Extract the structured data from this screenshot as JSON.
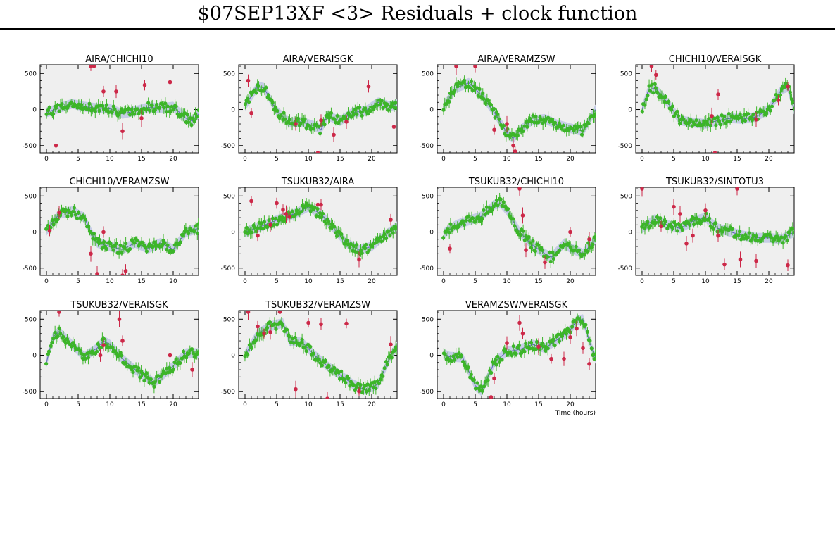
{
  "title": "$07SEP13XF <3> Residuals + clock function",
  "xlabel": "Time (hours)",
  "colors": {
    "background": "#ffffff",
    "plot_bg": "#efefef",
    "good_points": "#3cb529",
    "flagged_points": "#cc2848",
    "clock_band": "#c6cde6",
    "clock_line": "#5a66b2"
  },
  "chart_data": [
    {
      "type": "scatter",
      "title": "AIRA/CHICHI10",
      "xlim": [
        -1,
        24
      ],
      "ylim": [
        -600,
        620
      ],
      "xticks": [
        0,
        5,
        10,
        15,
        20
      ],
      "yticks": [
        -500,
        0,
        500
      ],
      "curve": [
        [
          0,
          -40
        ],
        [
          2,
          20
        ],
        [
          4,
          80
        ],
        [
          6,
          40
        ],
        [
          8,
          20
        ],
        [
          10,
          10
        ],
        [
          12,
          -60
        ],
        [
          14,
          -20
        ],
        [
          16,
          30
        ],
        [
          18,
          20
        ],
        [
          20,
          40
        ],
        [
          22,
          -120
        ],
        [
          23,
          -160
        ],
        [
          24,
          -60
        ]
      ],
      "flagged": [
        [
          1.5,
          -500
        ],
        [
          7,
          600
        ],
        [
          7.5,
          600
        ],
        [
          9,
          250
        ],
        [
          11,
          250
        ],
        [
          12,
          -300
        ],
        [
          15.5,
          340
        ],
        [
          19.5,
          380
        ],
        [
          15,
          -120
        ]
      ]
    },
    {
      "type": "scatter",
      "title": "AIRA/VERAISGK",
      "xlim": [
        -1,
        24
      ],
      "ylim": [
        -600,
        620
      ],
      "xticks": [
        0,
        5,
        10,
        15,
        20
      ],
      "yticks": [
        -500,
        0,
        500
      ],
      "curve": [
        [
          0,
          50
        ],
        [
          2,
          320
        ],
        [
          3,
          300
        ],
        [
          5,
          -20
        ],
        [
          7,
          -180
        ],
        [
          9,
          -170
        ],
        [
          11,
          -230
        ],
        [
          12,
          -280
        ],
        [
          13,
          -80
        ],
        [
          15,
          -160
        ],
        [
          17,
          -40
        ],
        [
          19,
          -20
        ],
        [
          21,
          100
        ],
        [
          23,
          40
        ],
        [
          24,
          80
        ]
      ],
      "flagged": [
        [
          0.5,
          400
        ],
        [
          1,
          -50
        ],
        [
          8,
          -200
        ],
        [
          11.5,
          -600
        ],
        [
          12,
          -150
        ],
        [
          14,
          -350
        ],
        [
          16,
          -170
        ],
        [
          19.5,
          320
        ],
        [
          23.5,
          -240
        ]
      ]
    },
    {
      "type": "scatter",
      "title": "AIRA/VERAMZSW",
      "xlim": [
        -1,
        24
      ],
      "ylim": [
        -600,
        620
      ],
      "xticks": [
        0,
        5,
        10,
        15,
        20
      ],
      "yticks": [
        -500,
        0,
        500
      ],
      "curve": [
        [
          0,
          40
        ],
        [
          2,
          300
        ],
        [
          4,
          370
        ],
        [
          6,
          200
        ],
        [
          8,
          -40
        ],
        [
          10,
          -320
        ],
        [
          11,
          -400
        ],
        [
          12,
          -290
        ],
        [
          14,
          -150
        ],
        [
          16,
          -130
        ],
        [
          18,
          -210
        ],
        [
          20,
          -260
        ],
        [
          22,
          -300
        ],
        [
          23,
          -150
        ],
        [
          24,
          0
        ]
      ],
      "flagged": [
        [
          2,
          600
        ],
        [
          5,
          600
        ],
        [
          10,
          -200
        ],
        [
          11,
          -500
        ],
        [
          11.3,
          -580
        ],
        [
          8,
          -280
        ]
      ]
    },
    {
      "type": "scatter",
      "title": "CHICHI10/VERAISGK",
      "xlim": [
        -1,
        24
      ],
      "ylim": [
        -600,
        620
      ],
      "xticks": [
        0,
        5,
        10,
        15,
        20
      ],
      "yticks": [
        -500,
        0,
        500
      ],
      "curve": [
        [
          0,
          0
        ],
        [
          1,
          270
        ],
        [
          2,
          300
        ],
        [
          4,
          100
        ],
        [
          6,
          -150
        ],
        [
          8,
          -180
        ],
        [
          10,
          -200
        ],
        [
          12,
          -150
        ],
        [
          14,
          -120
        ],
        [
          16,
          -130
        ],
        [
          18,
          -100
        ],
        [
          20,
          0
        ],
        [
          22,
          280
        ],
        [
          23,
          310
        ],
        [
          24,
          0
        ]
      ],
      "flagged": [
        [
          1.5,
          600
        ],
        [
          2.2,
          480
        ],
        [
          11,
          -90
        ],
        [
          11.5,
          -600
        ],
        [
          12,
          210
        ],
        [
          18,
          -140
        ],
        [
          21.5,
          130
        ],
        [
          23,
          320
        ]
      ]
    },
    {
      "type": "scatter",
      "title": "CHICHI10/VERAMZSW",
      "xlim": [
        -1,
        24
      ],
      "ylim": [
        -600,
        620
      ],
      "xticks": [
        0,
        5,
        10,
        15,
        20
      ],
      "yticks": [
        -500,
        0,
        500
      ],
      "curve": [
        [
          0,
          20
        ],
        [
          2,
          250
        ],
        [
          4,
          290
        ],
        [
          6,
          200
        ],
        [
          7,
          0
        ],
        [
          8,
          -150
        ],
        [
          10,
          -200
        ],
        [
          12,
          -240
        ],
        [
          14,
          -150
        ],
        [
          16,
          -230
        ],
        [
          18,
          -150
        ],
        [
          20,
          -240
        ],
        [
          22,
          0
        ],
        [
          24,
          50
        ]
      ],
      "flagged": [
        [
          0.5,
          20
        ],
        [
          2,
          270
        ],
        [
          7,
          -300
        ],
        [
          8,
          -580
        ],
        [
          9,
          0
        ],
        [
          12,
          -600
        ],
        [
          12.5,
          -540
        ]
      ]
    },
    {
      "type": "scatter",
      "title": "TSUKUB32/AIRA",
      "xlim": [
        -1,
        24
      ],
      "ylim": [
        -600,
        620
      ],
      "xticks": [
        0,
        5,
        10,
        15,
        20
      ],
      "yticks": [
        -500,
        0,
        500
      ],
      "curve": [
        [
          0,
          0
        ],
        [
          2,
          60
        ],
        [
          4,
          130
        ],
        [
          6,
          200
        ],
        [
          8,
          260
        ],
        [
          10,
          350
        ],
        [
          12,
          250
        ],
        [
          14,
          50
        ],
        [
          16,
          -150
        ],
        [
          18,
          -250
        ],
        [
          20,
          -200
        ],
        [
          22,
          -50
        ],
        [
          24,
          80
        ]
      ],
      "flagged": [
        [
          1,
          430
        ],
        [
          2,
          -50
        ],
        [
          4,
          100
        ],
        [
          5,
          400
        ],
        [
          6,
          310
        ],
        [
          6.5,
          250
        ],
        [
          7,
          210
        ],
        [
          11.5,
          380
        ],
        [
          12,
          380
        ],
        [
          18,
          -380
        ],
        [
          23,
          170
        ]
      ]
    },
    {
      "type": "scatter",
      "title": "TSUKUB32/CHICHI10",
      "xlim": [
        -1,
        24
      ],
      "ylim": [
        -600,
        620
      ],
      "xticks": [
        0,
        5,
        10,
        15,
        20
      ],
      "yticks": [
        -500,
        0,
        500
      ],
      "curve": [
        [
          0,
          -20
        ],
        [
          2,
          100
        ],
        [
          4,
          160
        ],
        [
          6,
          220
        ],
        [
          8,
          380
        ],
        [
          9,
          400
        ],
        [
          10,
          300
        ],
        [
          12,
          0
        ],
        [
          14,
          -180
        ],
        [
          16,
          -300
        ],
        [
          17,
          -350
        ],
        [
          19,
          -160
        ],
        [
          20,
          -220
        ],
        [
          22,
          -300
        ],
        [
          24,
          -100
        ]
      ],
      "flagged": [
        [
          1,
          -230
        ],
        [
          12,
          600
        ],
        [
          12.5,
          230
        ],
        [
          13,
          -250
        ],
        [
          16,
          -420
        ],
        [
          20,
          0
        ],
        [
          23,
          -100
        ]
      ]
    },
    {
      "type": "scatter",
      "title": "TSUKUB32/SINTOTU3",
      "xlim": [
        -1,
        24
      ],
      "ylim": [
        -600,
        620
      ],
      "xticks": [
        0,
        5,
        10,
        15,
        20
      ],
      "yticks": [
        -500,
        0,
        500
      ],
      "curve": [
        [
          0,
          50
        ],
        [
          2,
          180
        ],
        [
          4,
          100
        ],
        [
          6,
          50
        ],
        [
          8,
          150
        ],
        [
          10,
          200
        ],
        [
          12,
          50
        ],
        [
          14,
          0
        ],
        [
          16,
          -50
        ],
        [
          18,
          -80
        ],
        [
          20,
          -80
        ],
        [
          22,
          -100
        ],
        [
          24,
          0
        ]
      ],
      "flagged": [
        [
          0,
          600
        ],
        [
          3,
          80
        ],
        [
          5,
          350
        ],
        [
          6,
          250
        ],
        [
          7,
          -160
        ],
        [
          8,
          -50
        ],
        [
          10,
          300
        ],
        [
          12,
          -50
        ],
        [
          13,
          -450
        ],
        [
          15,
          600
        ],
        [
          15.5,
          -380
        ],
        [
          18,
          -400
        ],
        [
          23,
          -460
        ]
      ]
    },
    {
      "type": "scatter",
      "title": "TSUKUB32/VERAISGK",
      "xlim": [
        -1,
        24
      ],
      "ylim": [
        -600,
        620
      ],
      "xticks": [
        0,
        5,
        10,
        15,
        20
      ],
      "yticks": [
        -500,
        0,
        500
      ],
      "curve": [
        [
          0,
          -100
        ],
        [
          1,
          250
        ],
        [
          2,
          330
        ],
        [
          4,
          150
        ],
        [
          6,
          -20
        ],
        [
          8,
          100
        ],
        [
          9,
          200
        ],
        [
          10,
          150
        ],
        [
          12,
          -50
        ],
        [
          14,
          -200
        ],
        [
          16,
          -320
        ],
        [
          17,
          -380
        ],
        [
          20,
          -150
        ],
        [
          22,
          30
        ],
        [
          24,
          30
        ]
      ],
      "flagged": [
        [
          2,
          600
        ],
        [
          8.5,
          0
        ],
        [
          9,
          140
        ],
        [
          11.5,
          500
        ],
        [
          12,
          200
        ],
        [
          19.5,
          0
        ],
        [
          23,
          -200
        ]
      ]
    },
    {
      "type": "scatter",
      "title": "TSUKUB32/VERAMZSW",
      "xlim": [
        -1,
        24
      ],
      "ylim": [
        -600,
        620
      ],
      "xticks": [
        0,
        5,
        10,
        15,
        20
      ],
      "yticks": [
        -500,
        0,
        500
      ],
      "curve": [
        [
          0,
          0
        ],
        [
          2,
          300
        ],
        [
          4,
          400
        ],
        [
          6,
          450
        ],
        [
          7,
          200
        ],
        [
          9,
          180
        ],
        [
          11,
          0
        ],
        [
          13,
          -150
        ],
        [
          15,
          -270
        ],
        [
          17,
          -400
        ],
        [
          19,
          -480
        ],
        [
          21,
          -400
        ],
        [
          23,
          0
        ],
        [
          24,
          120
        ]
      ],
      "flagged": [
        [
          0.5,
          600
        ],
        [
          2,
          400
        ],
        [
          3,
          300
        ],
        [
          4,
          320
        ],
        [
          5.5,
          600
        ],
        [
          8,
          -470
        ],
        [
          10,
          450
        ],
        [
          12,
          430
        ],
        [
          13,
          -600
        ],
        [
          16,
          440
        ],
        [
          18,
          -500
        ],
        [
          23,
          150
        ]
      ]
    },
    {
      "type": "scatter",
      "title": "VERAMZSW/VERAISGK",
      "xlim": [
        -1,
        24
      ],
      "ylim": [
        -600,
        620
      ],
      "xticks": [
        0,
        5,
        10,
        15,
        20
      ],
      "yticks": [
        -500,
        0,
        500
      ],
      "curve": [
        [
          0,
          20
        ],
        [
          1,
          -20
        ],
        [
          3,
          -30
        ],
        [
          5,
          -420
        ],
        [
          6,
          -500
        ],
        [
          8,
          -100
        ],
        [
          10,
          50
        ],
        [
          12,
          80
        ],
        [
          14,
          150
        ],
        [
          16,
          100
        ],
        [
          18,
          220
        ],
        [
          20,
          350
        ],
        [
          21,
          480
        ],
        [
          22,
          500
        ],
        [
          23,
          200
        ],
        [
          24,
          -50
        ]
      ],
      "flagged": [
        [
          7.5,
          -580
        ],
        [
          8,
          -320
        ],
        [
          10,
          170
        ],
        [
          12,
          450
        ],
        [
          12.5,
          300
        ],
        [
          15,
          120
        ],
        [
          17,
          -50
        ],
        [
          19,
          -50
        ],
        [
          20,
          250
        ],
        [
          21,
          370
        ],
        [
          22,
          100
        ],
        [
          23,
          -120
        ]
      ]
    }
  ]
}
